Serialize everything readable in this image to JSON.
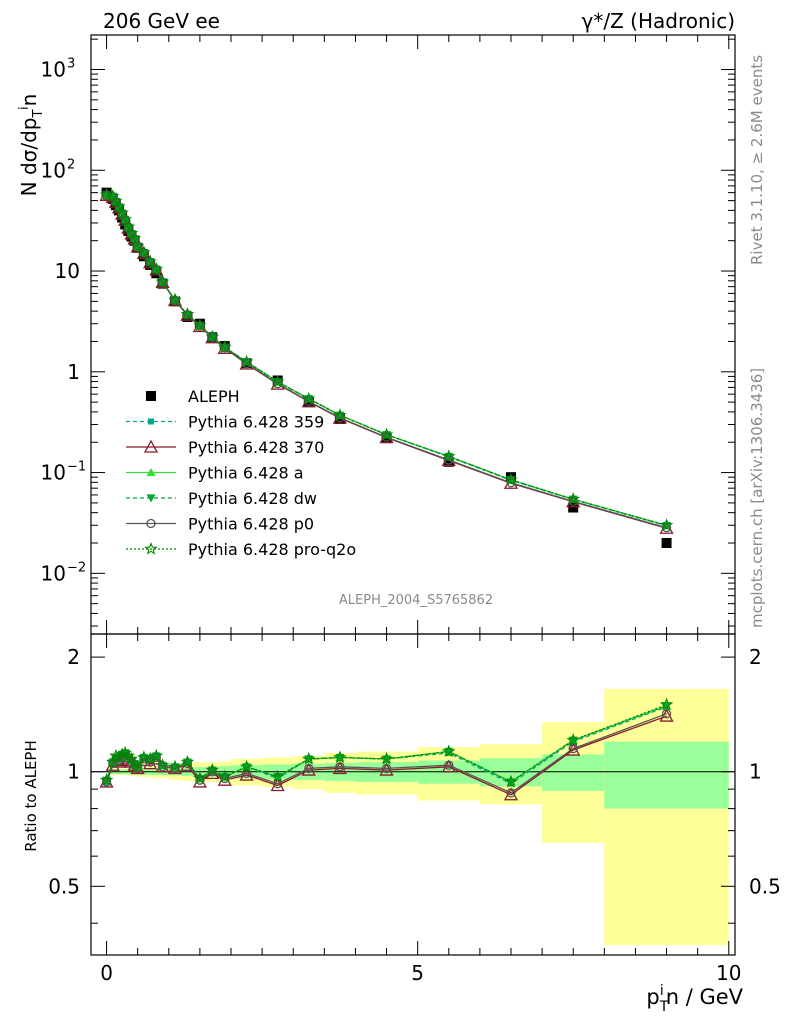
{
  "header": {
    "left": "206 GeV ee",
    "right_main": "γ*/Z (Hadronic)"
  },
  "side_labels": {
    "rivet": "Rivet 3.1.10, ≥ 2.6M events",
    "mcplots": "mcplots.cern.ch [arXiv:1306.3436]"
  },
  "analysis_id": "ALEPH_2004_S5765862",
  "chart_data": {
    "type": "line",
    "ylabel_main": "N dσ/dp",
    "ylabel_ratio": "Ratio to ALEPH",
    "xlabel_main": "p",
    "xlabel_tail": "n / GeV",
    "xlim": [
      -0.25,
      10.1
    ],
    "ylim_main": [
      0.0025,
      2200
    ],
    "yscale_main": "log",
    "ylim_ratio": [
      0.33,
      2.3
    ],
    "yscale_ratio": "log",
    "x_ticks": [
      0,
      5,
      10
    ],
    "x_tick_labels": [
      "0",
      "5",
      "10"
    ],
    "y_ticks_main": [
      0.01,
      0.1,
      1,
      10,
      100,
      1000
    ],
    "y_tick_labels_main": [
      {
        "base": "10",
        "exp": "−2"
      },
      {
        "base": "10",
        "exp": "−1"
      },
      {
        "base": "1",
        "exp": ""
      },
      {
        "base": "10",
        "exp": ""
      },
      {
        "base": "10",
        "exp": "2"
      },
      {
        "base": "10",
        "exp": "3"
      }
    ],
    "y_ticks_ratio": [
      0.5,
      1,
      2
    ],
    "y_tick_labels_ratio": [
      "0.5",
      "1",
      "2"
    ],
    "legend_position": "left-middle",
    "x": [
      0.0,
      0.1,
      0.15,
      0.2,
      0.25,
      0.3,
      0.35,
      0.4,
      0.45,
      0.5,
      0.6,
      0.7,
      0.8,
      0.9,
      1.1,
      1.3,
      1.5,
      1.7,
      1.9,
      2.25,
      2.75,
      3.25,
      3.75,
      4.5,
      5.5,
      6.5,
      7.5,
      9.0
    ],
    "data": {
      "name": "ALEPH",
      "values": [
        60,
        52,
        45,
        40,
        34,
        29,
        25,
        22,
        20,
        17,
        14,
        11.5,
        9.5,
        7.5,
        5.0,
        3.5,
        3.0,
        2.2,
        1.8,
        1.22,
        0.82,
        0.5,
        0.34,
        0.22,
        0.128,
        0.09,
        0.045,
        0.02
      ],
      "color": "#000000"
    },
    "band_edges": [
      0.0,
      0.1,
      0.15,
      0.2,
      0.25,
      0.3,
      0.35,
      0.4,
      0.45,
      0.5,
      0.55,
      0.65,
      0.75,
      0.85,
      1.0,
      1.2,
      1.4,
      1.6,
      1.8,
      2.0,
      2.5,
      3.0,
      3.5,
      4.0,
      5.0,
      6.0,
      7.0,
      8.0,
      10.0
    ],
    "band_stat": [
      0.015,
      0.015,
      0.015,
      0.015,
      0.015,
      0.015,
      0.015,
      0.016,
      0.016,
      0.017,
      0.018,
      0.02,
      0.02,
      0.02,
      0.022,
      0.025,
      0.028,
      0.03,
      0.035,
      0.04,
      0.045,
      0.05,
      0.055,
      0.06,
      0.07,
      0.085,
      0.11,
      0.2
    ],
    "band_total": [
      0.02,
      0.02,
      0.02,
      0.02,
      0.02,
      0.02,
      0.025,
      0.025,
      0.025,
      0.03,
      0.03,
      0.035,
      0.04,
      0.04,
      0.05,
      0.055,
      0.06,
      0.06,
      0.065,
      0.08,
      0.09,
      0.1,
      0.12,
      0.13,
      0.16,
      0.18,
      0.35,
      0.65
    ],
    "band_colors": {
      "stat": "#99ff99",
      "total": "#ffff99"
    },
    "series": [
      {
        "name": "Pythia 6.428 359",
        "color": "#00aa88",
        "dash": "4,3",
        "marker": "square",
        "ratio": [
          0.94,
          1.06,
          1.09,
          1.08,
          1.1,
          1.11,
          1.09,
          1.07,
          1.05,
          1.03,
          1.09,
          1.07,
          1.1,
          1.04,
          1.03,
          1.06,
          0.96,
          1.01,
          0.97,
          1.03,
          0.96,
          1.08,
          1.09,
          1.08,
          1.12,
          0.93,
          1.2,
          1.48
        ]
      },
      {
        "name": "Pythia 6.428 370",
        "color": "#8b1a2b",
        "dash": "",
        "marker": "triangle-open",
        "ratio": [
          0.94,
          1.04,
          1.07,
          1.06,
          1.08,
          1.1,
          1.07,
          1.06,
          1.04,
          1.02,
          1.07,
          1.05,
          1.08,
          1.03,
          1.02,
          1.04,
          0.94,
          0.99,
          0.95,
          0.98,
          0.92,
          1.01,
          1.02,
          1.01,
          1.03,
          0.87,
          1.14,
          1.4
        ]
      },
      {
        "name": "Pythia 6.428 a",
        "color": "#33dd33",
        "dash": "",
        "marker": "triangle",
        "ratio": [
          0.95,
          1.06,
          1.09,
          1.08,
          1.11,
          1.12,
          1.09,
          1.07,
          1.05,
          1.03,
          1.09,
          1.08,
          1.1,
          1.04,
          1.03,
          1.06,
          0.96,
          1.01,
          0.97,
          1.03,
          0.97,
          1.08,
          1.09,
          1.08,
          1.13,
          0.94,
          1.21,
          1.49
        ]
      },
      {
        "name": "Pythia 6.428 dw",
        "color": "#00aa33",
        "dash": "4,3",
        "marker": "triangle-down",
        "ratio": [
          0.95,
          1.06,
          1.09,
          1.08,
          1.11,
          1.12,
          1.09,
          1.07,
          1.05,
          1.03,
          1.09,
          1.08,
          1.1,
          1.04,
          1.03,
          1.06,
          0.96,
          1.01,
          0.97,
          1.03,
          0.97,
          1.08,
          1.09,
          1.08,
          1.13,
          0.94,
          1.21,
          1.49
        ]
      },
      {
        "name": "Pythia 6.428 p0",
        "color": "#555555",
        "dash": "",
        "marker": "circle-open",
        "ratio": [
          0.94,
          1.05,
          1.08,
          1.07,
          1.09,
          1.11,
          1.08,
          1.06,
          1.04,
          1.02,
          1.08,
          1.06,
          1.09,
          1.03,
          1.02,
          1.05,
          0.95,
          1.0,
          0.96,
          0.99,
          0.93,
          1.02,
          1.03,
          1.02,
          1.04,
          0.88,
          1.15,
          1.42
        ]
      },
      {
        "name": "Pythia 6.428 pro-q2o",
        "color": "#008800",
        "dash": "2,2",
        "marker": "star",
        "ratio": [
          0.95,
          1.06,
          1.1,
          1.09,
          1.11,
          1.12,
          1.1,
          1.08,
          1.05,
          1.03,
          1.09,
          1.08,
          1.1,
          1.04,
          1.03,
          1.06,
          0.96,
          1.01,
          0.97,
          1.03,
          0.97,
          1.08,
          1.09,
          1.08,
          1.13,
          0.94,
          1.21,
          1.5
        ]
      }
    ]
  }
}
